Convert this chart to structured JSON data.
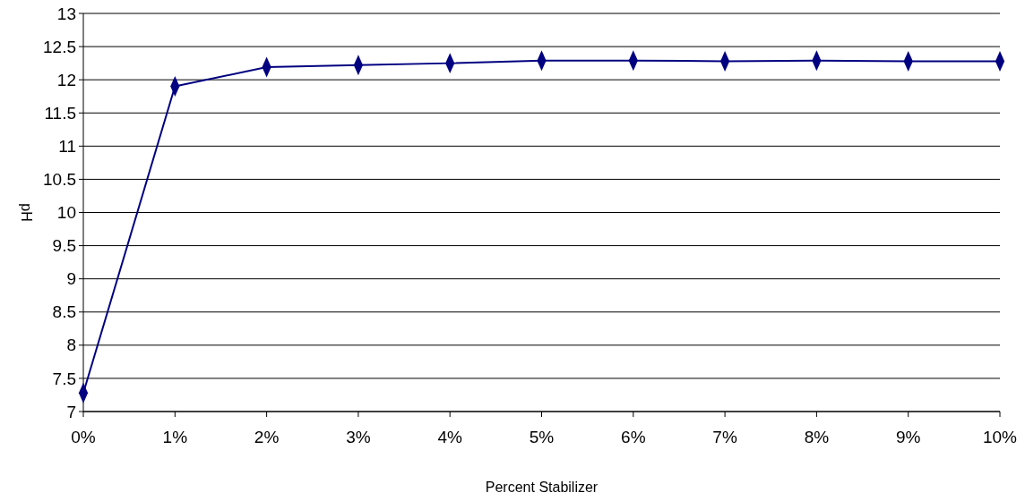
{
  "chart_data": {
    "type": "line",
    "xlabel": "Percent Stabilizer",
    "ylabel": "pH",
    "categories": [
      "0%",
      "1%",
      "2%",
      "3%",
      "4%",
      "5%",
      "6%",
      "7%",
      "8%",
      "9%",
      "10%"
    ],
    "series": [
      {
        "color": "#000080",
        "values": [
          7.28,
          11.9,
          12.19,
          12.22,
          12.25,
          12.29,
          12.29,
          12.28,
          12.29,
          12.28,
          12.28
        ]
      }
    ],
    "ylim": [
      7,
      13
    ],
    "yticks": [
      7,
      7.5,
      8,
      8.5,
      9,
      9.5,
      10,
      10.5,
      11,
      11.5,
      12,
      12.5,
      13
    ],
    "grid": "y",
    "marker": "diamond",
    "line_style": "solid"
  }
}
